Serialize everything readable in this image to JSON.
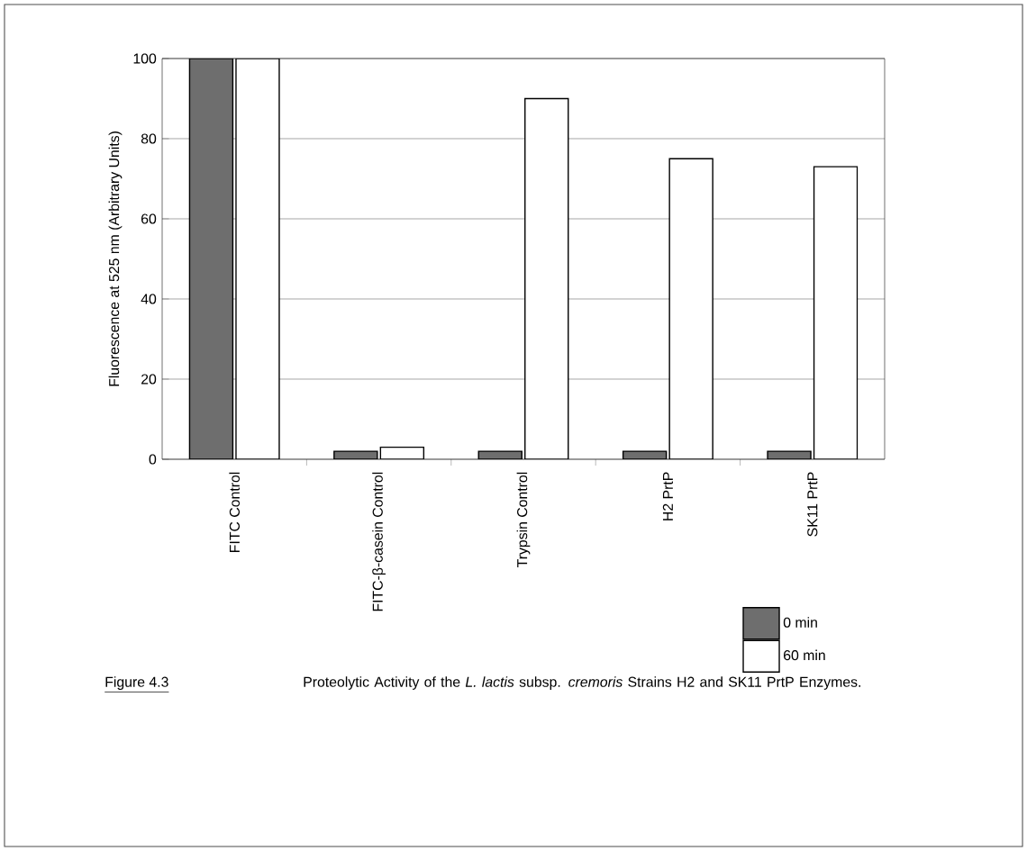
{
  "chart_data": {
    "type": "bar",
    "ylabel": "Fluorescence at 525 nm (Arbitrary Units)",
    "categories": [
      "FITC Control",
      "FITC-β-casein Control",
      "Trypsin Control",
      "H2 PrtP",
      "SK11 PrtP"
    ],
    "series": [
      {
        "name": "0 min",
        "color": "#6e6e6e",
        "values": [
          100,
          2,
          2,
          2,
          2
        ]
      },
      {
        "name": "60 min",
        "color": "#ffffff",
        "values": [
          100,
          3,
          90,
          75,
          73
        ]
      }
    ],
    "ylim": [
      0,
      100
    ],
    "yticks": [
      0,
      20,
      40,
      60,
      80,
      100
    ],
    "grid": "y",
    "legend": "bottom right",
    "annotations": [
      "Figure 4.3",
      "Proteolytic Activity of the *L. lactis* subsp. *cremoris* Strains H2 and SK11 PrtP Enzymes."
    ]
  }
}
